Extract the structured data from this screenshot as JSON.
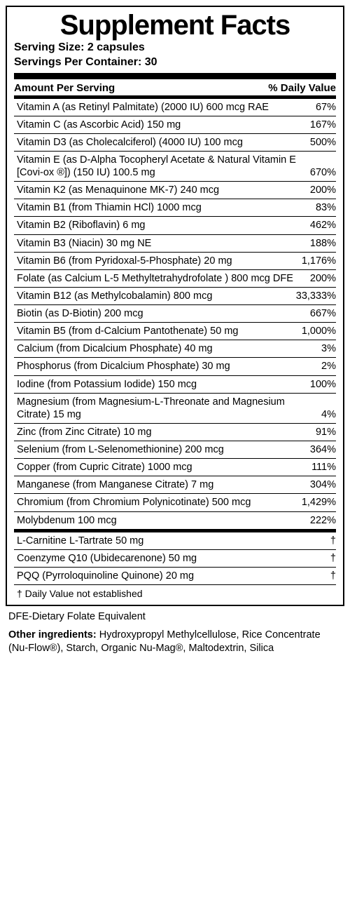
{
  "title": "Supplement Facts",
  "serving_size_label": "Serving Size: ",
  "serving_size": "2 capsules",
  "servings_per_label": "Servings Per Container: ",
  "servings_per": "30",
  "header": {
    "left": "Amount Per Serving",
    "right": "% Daily Value"
  },
  "rows": [
    {
      "name": "Vitamin A (as Retinyl Palmitate) (2000 IU) 600 mcg RAE",
      "dv": "67%"
    },
    {
      "name": "Vitamin C (as Ascorbic Acid) 150 mg",
      "dv": "167%"
    },
    {
      "name": "Vitamin D3 (as Cholecalciferol) (4000 IU) 100 mcg",
      "dv": "500%"
    },
    {
      "name": "Vitamin E (as D-Alpha Tocopheryl Acetate & Natural Vitamin E [Covi-ox ®]) (150 IU) 100.5 mg",
      "dv": "670%"
    },
    {
      "name": "Vitamin K2 (as Menaquinone MK-7) 240 mcg",
      "dv": "200%"
    },
    {
      "name": "Vitamin B1 (from Thiamin HCl) 1000 mcg",
      "dv": "83%"
    },
    {
      "name": "Vitamin B2 (Riboflavin) 6 mg",
      "dv": "462%"
    },
    {
      "name": "Vitamin B3 (Niacin) 30 mg NE",
      "dv": "188%"
    },
    {
      "name": "Vitamin B6 (from Pyridoxal-5-Phosphate) 20 mg",
      "dv": "1,176%"
    },
    {
      "name": "Folate (as Calcium L-5 Methyltetrahydrofolate ) 800 mcg  DFE",
      "dv": "200%"
    },
    {
      "name": "Vitamin B12 (as Methylcobalamin) 800 mcg",
      "dv": "33,333%"
    },
    {
      "name": "Biotin (as D-Biotin) 200 mcg",
      "dv": "667%"
    },
    {
      "name": "Vitamin B5 (from d-Calcium Pantothenate) 50 mg",
      "dv": "1,000%"
    },
    {
      "name": "Calcium (from Dicalcium Phosphate)  40 mg",
      "dv": "3%"
    },
    {
      "name": "Phosphorus (from Dicalcium Phosphate) 30 mg",
      "dv": "2%"
    },
    {
      "name": "Iodine (from Potassium Iodide) 150 mcg",
      "dv": "100%"
    },
    {
      "name": "Magnesium (from Magnesium-L-Threonate and Magnesium Citrate) 15 mg",
      "dv": "4%"
    },
    {
      "name": "Zinc (from Zinc Citrate) 10 mg",
      "dv": "91%"
    },
    {
      "name": "Selenium (from L-Selenomethionine) 200 mcg",
      "dv": "364%"
    },
    {
      "name": "Copper (from Cupric Citrate) 1000 mcg",
      "dv": "111%"
    },
    {
      "name": "Manganese (from Manganese Citrate) 7 mg",
      "dv": "304%"
    },
    {
      "name": "Chromium (from Chromium Polynicotinate) 500 mcg",
      "dv": "1,429%"
    },
    {
      "name": "Molybdenum 100 mcg",
      "dv": "222%"
    }
  ],
  "rows2": [
    {
      "name": "L-Carnitine L-Tartrate 50 mg",
      "dv": "†"
    },
    {
      "name": "Coenzyme Q10 (Ubidecarenone) 50 mg",
      "dv": "†"
    },
    {
      "name": "PQQ (Pyrroloquinoline Quinone) 20 mg",
      "dv": "†"
    }
  ],
  "footnote": "† Daily Value not established",
  "dfe": "DFE-Dietary Folate Equivalent",
  "other_label": "Other ingredients: ",
  "other": "Hydroxypropyl Methylcellulose, Rice Concentrate (Nu-Flow®), Starch, Organic Nu-Mag®, Maltodextrin, Silica"
}
